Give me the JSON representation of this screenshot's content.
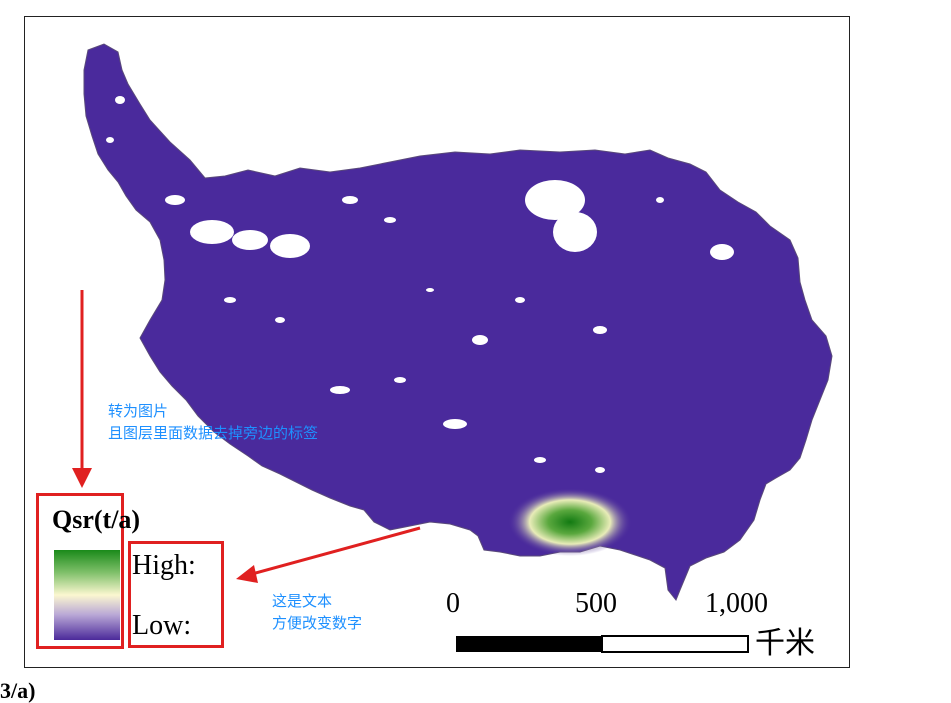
{
  "legend": {
    "title": "Qsr(t/a)",
    "high_label": "High:",
    "low_label": "Low:",
    "ramp_colors": [
      "#1a8a1a",
      "#7fc06a",
      "#fbf7d0",
      "#b9a8d6",
      "#4b2a9a"
    ]
  },
  "scale_bar": {
    "ticks": [
      "0",
      "500",
      "1,000"
    ],
    "unit": "千米"
  },
  "annotations": {
    "note_image_line1": "转为图片",
    "note_image_line2": "且图层里面数据去掉旁边的标签",
    "note_text_line1": "这是文本",
    "note_text_line2": "方便改变数字"
  },
  "bottom_fragment": "3/a)",
  "colors": {
    "region_fill": "#4a2a9c",
    "highlight": "#e02020",
    "note_text": "#1e90ff"
  }
}
